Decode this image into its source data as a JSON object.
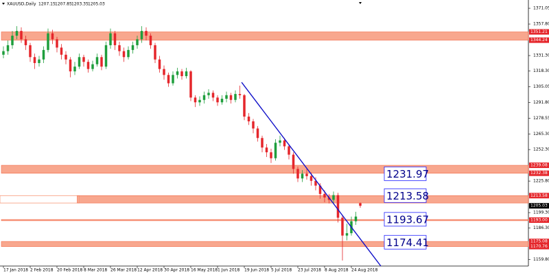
{
  "chart_data": {
    "type": "candlestick",
    "symbol": "XAUUSD,Daily",
    "categories": [
      "17 Jan 2018",
      null,
      null,
      null,
      null,
      null,
      "2 Feb 2018",
      null,
      null,
      null,
      null,
      null,
      "20 Feb 2018",
      null,
      null,
      null,
      null,
      null,
      "8 Mar 2018",
      null,
      null,
      null,
      null,
      null,
      "26 Mar 2018",
      null,
      null,
      null,
      null,
      null,
      "12 Apr 2018",
      null,
      null,
      null,
      null,
      null,
      "30 Apr 2018",
      null,
      null,
      null,
      null,
      null,
      "16 May 2018",
      null,
      null,
      null,
      null,
      null,
      "1 Jun 2018",
      null,
      null,
      null,
      null,
      null,
      "19 Jun 2018",
      null,
      null,
      null,
      null,
      null,
      "5 Jul 2018",
      null,
      null,
      null,
      null,
      null,
      "23 Jul 2018",
      null,
      null,
      null,
      null,
      null,
      "8 Aug 2018",
      null,
      null,
      null,
      null,
      null,
      "24 Aug 2018",
      null,
      null
    ],
    "open": [
      1332,
      1335,
      1340,
      1348,
      1352,
      1345,
      1340,
      1330,
      1325,
      1328,
      1336,
      1350,
      1345,
      1338,
      1332,
      1328,
      1318,
      1322,
      1330,
      1326,
      1320,
      1324,
      1330,
      1322,
      1340,
      1350,
      1340,
      1335,
      1330,
      1336,
      1340,
      1345,
      1352,
      1348,
      1340,
      1328,
      1320,
      1315,
      1308,
      1315,
      1318,
      1314,
      1318,
      1296,
      1292,
      1294,
      1298,
      1300,
      1296,
      1292,
      1295,
      1298,
      1294,
      1299,
      1298,
      1280,
      1276,
      1270,
      1262,
      1254,
      1250,
      1245,
      1258,
      1260,
      1255,
      1248,
      1236,
      1228,
      1232,
      1230,
      1226,
      1222,
      1215,
      1212,
      1210,
      1214,
      1195,
      1180,
      1182,
      1192,
      1207.15
    ],
    "high": [
      1339,
      1344,
      1352,
      1356,
      1355,
      1348,
      1342,
      1333,
      1331,
      1339,
      1354,
      1353,
      1347,
      1341,
      1335,
      1330,
      1326,
      1333,
      1332,
      1328,
      1327,
      1333,
      1332,
      1343,
      1354,
      1352,
      1343,
      1338,
      1339,
      1343,
      1348,
      1356,
      1355,
      1350,
      1342,
      1331,
      1323,
      1317,
      1318,
      1321,
      1320,
      1321,
      1319,
      1298,
      1297,
      1301,
      1303,
      1302,
      1298,
      1298,
      1301,
      1300,
      1302,
      1306,
      1299,
      1283,
      1278,
      1272,
      1264,
      1257,
      1253,
      1261,
      1264,
      1262,
      1257,
      1250,
      1238,
      1235,
      1236,
      1233,
      1229,
      1224,
      1218,
      1215,
      1217,
      1216,
      1197,
      1190,
      1196,
      1200,
      1207.85
    ],
    "low": [
      1329,
      1332,
      1337,
      1345,
      1342,
      1336,
      1326,
      1320,
      1322,
      1325,
      1334,
      1341,
      1334,
      1328,
      1324,
      1313,
      1315,
      1320,
      1322,
      1317,
      1318,
      1322,
      1319,
      1320,
      1337,
      1336,
      1331,
      1326,
      1328,
      1333,
      1337,
      1342,
      1344,
      1337,
      1325,
      1317,
      1311,
      1305,
      1306,
      1312,
      1311,
      1312,
      1293,
      1288,
      1289,
      1291,
      1295,
      1293,
      1289,
      1290,
      1292,
      1291,
      1292,
      1295,
      1277,
      1273,
      1266,
      1259,
      1250,
      1246,
      1241,
      1243,
      1255,
      1252,
      1244,
      1232,
      1225,
      1225,
      1227,
      1222,
      1218,
      1211,
      1208,
      1207,
      1207,
      1191,
      1159,
      1176,
      1180,
      1189,
      1203.35
    ],
    "close": [
      1335,
      1340,
      1348,
      1352,
      1345,
      1340,
      1330,
      1325,
      1328,
      1336,
      1350,
      1345,
      1338,
      1332,
      1328,
      1318,
      1322,
      1330,
      1326,
      1320,
      1324,
      1330,
      1322,
      1340,
      1350,
      1340,
      1335,
      1330,
      1336,
      1340,
      1345,
      1352,
      1348,
      1340,
      1328,
      1320,
      1315,
      1308,
      1315,
      1318,
      1314,
      1318,
      1296,
      1292,
      1294,
      1298,
      1300,
      1296,
      1292,
      1295,
      1298,
      1294,
      1299,
      1298,
      1280,
      1276,
      1270,
      1262,
      1254,
      1250,
      1245,
      1258,
      1260,
      1255,
      1248,
      1236,
      1228,
      1232,
      1230,
      1226,
      1222,
      1215,
      1212,
      1210,
      1214,
      1195,
      1180,
      1182,
      1192,
      1196,
      1205.03
    ],
    "up_color": "#1e9e3c",
    "down_color": "#e5262b",
    "ylim": [
      1154.4,
      1378
    ],
    "yticks": [
      1371.05,
      {
        "value": 1357.8,
        "label": "1357.80"
      },
      {
        "value": 1331.3,
        "label": "1331.30"
      },
      {
        "value": 1318.3,
        "label": "1318.30"
      },
      1305.05,
      {
        "value": 1291.8,
        "label": "1291.80"
      },
      1278.55,
      {
        "value": 1265.3,
        "label": "1265.30"
      },
      {
        "value": 1252.3,
        "label": "1252.30"
      },
      {
        "value": 1225.8,
        "label": "1225.80"
      },
      {
        "value": 1199.3,
        "label": "1199.30"
      },
      {
        "value": 1186.3,
        "label": "1186.30"
      },
      {
        "value": 1159.8,
        "label": "1159.80"
      }
    ],
    "zones": [
      {
        "low": 1344.24,
        "high": 1351.21,
        "start": 0,
        "labels": [
          1351.21,
          1344.24
        ]
      },
      {
        "low": 1232.38,
        "high": 1239.08,
        "start": 0,
        "labels": [
          1239.08,
          1232.38
        ]
      },
      {
        "low": 1207.36,
        "high": 1213.58,
        "start": 17,
        "labels": [
          1213.58
        ]
      },
      {
        "low": 1192.5,
        "high": 1193.5,
        "start": 0,
        "labels": [
          {
            "value": 1193,
            "label": "1193.00"
          }
        ]
      },
      {
        "low": 1170.76,
        "high": 1175.08,
        "start": 0,
        "labels": [
          1175.08,
          1170.76
        ]
      }
    ],
    "zone_color": "#f7987a",
    "trendline": {
      "x": [
        53.4,
        84.6
      ],
      "y": [
        1308.8,
        1154.4
      ],
      "color": "#1010c8"
    },
    "price_labels": [
      1231.97,
      1213.58,
      1193.67,
      1174.41
    ]
  }
}
